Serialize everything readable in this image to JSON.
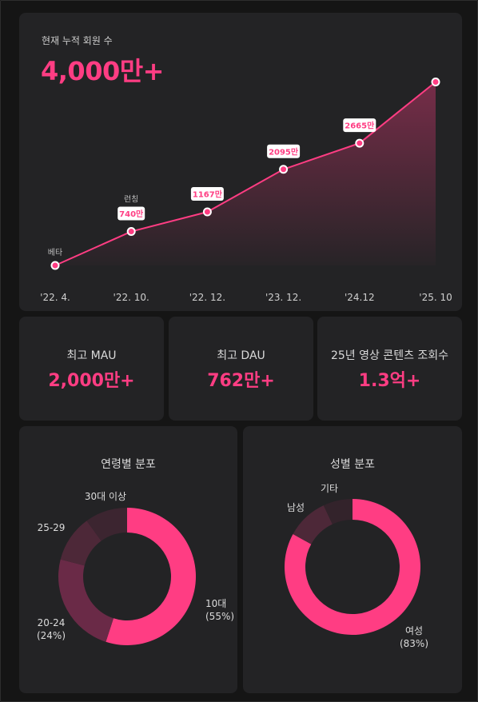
{
  "growth": {
    "kicker": "현재 누적 회원 수",
    "headline": "4,000만+"
  },
  "stats": [
    {
      "label": "최고 MAU",
      "value": "2,000만+"
    },
    {
      "label": "최고 DAU",
      "value": "762만+"
    },
    {
      "label": "25년 영상 콘텐츠 조회수",
      "value": "1.3억+"
    }
  ],
  "age": {
    "title": "연령별 분포"
  },
  "gender": {
    "title": "성별 분포"
  },
  "colors": {
    "accent": "#ff3d83",
    "card": "#232325",
    "background": "#151515",
    "dim1": "#6a2a47",
    "dim2": "#4d2838",
    "dim3": "#3c2530",
    "dim4": "#33232b"
  },
  "chart_data": [
    {
      "type": "area",
      "title": "현재 누적 회원 수",
      "categories": [
        "'22. 4.",
        "'22. 10.",
        "'22. 12.",
        "'23. 12.",
        "'24.12",
        "'25. 10"
      ],
      "values": [
        null,
        740,
        1167,
        2095,
        2665,
        4000
      ],
      "point_labels": [
        "베타",
        "740만",
        "1167만",
        "2095만",
        "2665만",
        ""
      ],
      "point_captions": [
        "",
        "런칭",
        "",
        "",
        "",
        ""
      ],
      "unit": "만",
      "ylim": [
        0,
        4200
      ],
      "grid": false,
      "legend": "none"
    },
    {
      "type": "pie",
      "title": "연령별 분포",
      "labels": [
        "10대",
        "20-24",
        "25-29",
        "30대 이상"
      ],
      "slice_labels": [
        "10대\n(55%)",
        "20-24\n(24%)",
        "25-29",
        "30대 이상"
      ],
      "values": [
        55,
        24,
        11,
        10
      ],
      "donut": true
    },
    {
      "type": "pie",
      "title": "성별 분포",
      "labels": [
        "여성",
        "남성",
        "기타"
      ],
      "slice_labels": [
        "여성\n(83%)",
        "남성",
        "기타"
      ],
      "values": [
        83,
        10,
        7
      ],
      "donut": true
    }
  ]
}
